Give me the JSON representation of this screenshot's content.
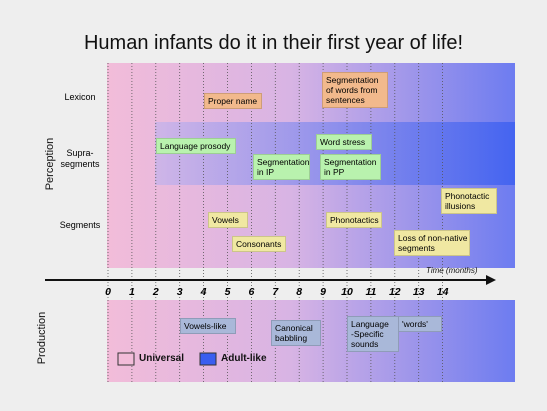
{
  "title": "Human infants do it in their first year of life!",
  "perception": {
    "label": "Perception",
    "rows": [
      {
        "label": [
          "Lexicon"
        ],
        "boxes": [
          {
            "lines": [
              "Proper name"
            ]
          },
          {
            "lines": [
              "Segmentation",
              "of words from",
              "sentences"
            ]
          }
        ]
      },
      {
        "label": [
          "Supra-",
          "segments"
        ],
        "boxes": [
          {
            "lines": [
              "Language prosody"
            ]
          },
          {
            "lines": [
              "Word stress"
            ]
          },
          {
            "lines": [
              "Segmentation",
              "in IP"
            ]
          },
          {
            "lines": [
              "Segmentation",
              "in PP"
            ]
          }
        ]
      },
      {
        "label": [
          "Segments"
        ],
        "boxes": [
          {
            "lines": [
              "Phonotactic",
              "illusions"
            ]
          },
          {
            "lines": [
              "Vowels"
            ]
          },
          {
            "lines": [
              "Phonotactics"
            ]
          },
          {
            "lines": [
              "Consonants"
            ]
          },
          {
            "lines": [
              "Loss of non-native",
              "segments"
            ]
          }
        ]
      }
    ]
  },
  "axis": {
    "label": "Time (months)",
    "ticks": [
      0,
      1,
      2,
      3,
      4,
      5,
      6,
      7,
      8,
      9,
      10,
      11,
      12,
      13,
      14
    ]
  },
  "production": {
    "label": "Production",
    "boxes": [
      {
        "lines": [
          "Vowels-like"
        ]
      },
      {
        "lines": [
          "Canonical",
          "babbling"
        ]
      },
      {
        "lines": [
          "Language",
          "-Specific",
          "sounds"
        ]
      },
      {
        "lines": [
          "'words'"
        ]
      }
    ]
  },
  "legend": {
    "items": [
      "Universal",
      "Adult-like"
    ]
  }
}
